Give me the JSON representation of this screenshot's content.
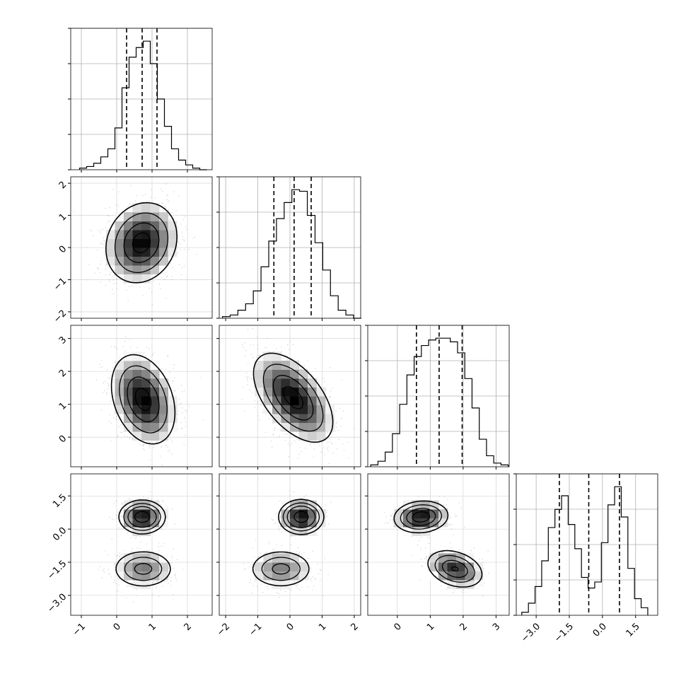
{
  "chart_data": {
    "type": "corner",
    "num_params": 4,
    "grid": true,
    "quantiles": [
      0.16,
      0.5,
      0.84
    ],
    "params": [
      {
        "range": [
          -1.3,
          2.7
        ],
        "ticks": [
          -1,
          0,
          1,
          2
        ],
        "tick_labels": [
          "−1",
          "0",
          "1",
          "2"
        ],
        "hist": {
          "x": [
            -0.95,
            -0.75,
            -0.55,
            -0.35,
            -0.15,
            0.05,
            0.25,
            0.45,
            0.65,
            0.85,
            1.05,
            1.25,
            1.45,
            1.65,
            1.85,
            2.05,
            2.25,
            2.45
          ],
          "counts": [
            1,
            2,
            4,
            8,
            13,
            26,
            51,
            70,
            76,
            80,
            66,
            44,
            27,
            13,
            6,
            3,
            1,
            0
          ]
        },
        "quantile_values": [
          0.28,
          0.72,
          1.14
        ]
      },
      {
        "range": [
          -2.2,
          2.2
        ],
        "ticks": [
          -2,
          -1,
          0,
          1,
          2
        ],
        "tick_labels": [
          "−2",
          "−1",
          "0",
          "1",
          "2"
        ],
        "hist": {
          "x": [
            -1.98,
            -1.74,
            -1.5,
            -1.26,
            -1.02,
            -0.78,
            -0.54,
            -0.3,
            -0.06,
            0.18,
            0.42,
            0.66,
            0.9,
            1.14,
            1.38,
            1.62,
            1.86,
            2.1
          ],
          "counts": [
            1,
            2,
            5,
            9,
            17,
            32,
            48,
            62,
            72,
            80,
            79,
            64,
            47,
            30,
            14,
            5,
            2,
            0
          ]
        },
        "quantile_values": [
          -0.5,
          0.13,
          0.66
        ]
      },
      {
        "range": [
          -0.9,
          3.4
        ],
        "ticks": [
          0,
          1,
          2,
          3
        ],
        "tick_labels": [
          "0",
          "1",
          "2",
          "3"
        ],
        "hist": {
          "x": [
            -0.7,
            -0.48,
            -0.26,
            -0.04,
            0.18,
            0.4,
            0.62,
            0.84,
            1.06,
            1.28,
            1.5,
            1.72,
            1.94,
            2.16,
            2.38,
            2.6,
            2.82,
            3.04,
            3.26
          ],
          "counts": [
            1,
            3,
            8,
            18,
            34,
            50,
            60,
            66,
            69,
            70,
            70,
            68,
            62,
            48,
            32,
            15,
            6,
            2,
            1
          ]
        },
        "quantile_values": [
          0.58,
          1.27,
          1.97
        ]
      },
      {
        "range": [
          -3.9,
          2.5
        ],
        "ticks": [
          -3.0,
          -1.5,
          0.0,
          1.5
        ],
        "tick_labels": [
          "−3.0",
          "−1.5",
          "0.0",
          "1.5"
        ],
        "hist": {
          "x": [
            -3.5,
            -3.2,
            -2.9,
            -2.6,
            -2.3,
            -2.0,
            -1.7,
            -1.4,
            -1.1,
            -0.8,
            -0.5,
            -0.2,
            0.1,
            0.4,
            0.7,
            1.0,
            1.3,
            1.6,
            1.9
          ],
          "counts": [
            2,
            8,
            19,
            36,
            58,
            70,
            79,
            60,
            44,
            25,
            18,
            22,
            48,
            73,
            85,
            65,
            31,
            11,
            5
          ]
        },
        "quantile_values": [
          -1.95,
          -0.62,
          0.77
        ]
      }
    ],
    "pairs": [
      {
        "row": 1,
        "col": 0,
        "components": [
          {
            "mean": [
              0.7,
              0.15
            ],
            "sd": [
              0.5,
              0.62
            ],
            "rho": 0.15,
            "weight": 1
          }
        ]
      },
      {
        "row": 2,
        "col": 0,
        "components": [
          {
            "mean": [
              0.75,
              1.15
            ],
            "sd": [
              0.45,
              0.68
            ],
            "rho": -0.3,
            "weight": 1
          }
        ]
      },
      {
        "row": 2,
        "col": 1,
        "components": [
          {
            "mean": [
              0.1,
              1.2
            ],
            "sd": [
              0.62,
              0.68
            ],
            "rho": -0.55,
            "weight": 1
          }
        ]
      },
      {
        "row": 3,
        "col": 0,
        "components": [
          {
            "mean": [
              0.72,
              0.55
            ],
            "sd": [
              0.3,
              0.35
            ],
            "rho": 0.0,
            "weight": 0.55
          },
          {
            "mean": [
              0.75,
              -1.8
            ],
            "sd": [
              0.42,
              0.42
            ],
            "rho": 0.0,
            "weight": 0.45
          }
        ]
      },
      {
        "row": 3,
        "col": 1,
        "components": [
          {
            "mean": [
              0.35,
              0.55
            ],
            "sd": [
              0.32,
              0.36
            ],
            "rho": 0.0,
            "weight": 0.55
          },
          {
            "mean": [
              -0.28,
              -1.8
            ],
            "sd": [
              0.48,
              0.42
            ],
            "rho": 0.0,
            "weight": 0.45
          }
        ]
      },
      {
        "row": 3,
        "col": 2,
        "components": [
          {
            "mean": [
              0.72,
              0.55
            ],
            "sd": [
              0.4,
              0.35
            ],
            "rho": 0.1,
            "weight": 0.5
          },
          {
            "mean": [
              1.75,
              -1.8
            ],
            "sd": [
              0.42,
              0.42
            ],
            "rho": -0.3,
            "weight": 0.5
          }
        ]
      }
    ]
  }
}
